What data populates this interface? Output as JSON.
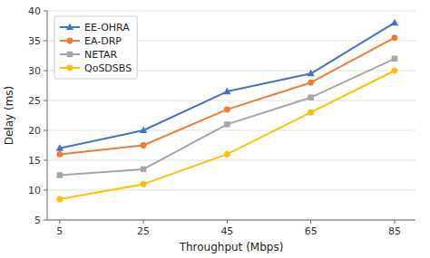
{
  "chart_data": {
    "type": "line",
    "xlabel": "Throughput (Mbps)",
    "ylabel": "Delay (ms)",
    "x": [
      5,
      25,
      45,
      65,
      85
    ],
    "series": [
      {
        "name": "EE-OHRA",
        "color": "#4472C4",
        "marker": "triangle",
        "values": [
          17.0,
          20.0,
          26.5,
          29.5,
          38.0
        ]
      },
      {
        "name": "EA-DRP",
        "color": "#ED7D31",
        "marker": "circle",
        "values": [
          16.0,
          17.5,
          23.5,
          28.0,
          35.5
        ]
      },
      {
        "name": "NETAR",
        "color": "#A5A5A5",
        "marker": "square",
        "values": [
          12.5,
          13.5,
          21.0,
          25.5,
          32.0
        ]
      },
      {
        "name": "QoSDSBS",
        "color": "#FFC000",
        "marker": "circle",
        "values": [
          8.5,
          11.0,
          16.0,
          23.0,
          30.0
        ]
      }
    ],
    "xlim": [
      2,
      90
    ],
    "xticks": [
      5,
      25,
      45,
      65,
      85
    ],
    "ylim": [
      5,
      40
    ],
    "yticks": [
      5,
      10,
      15,
      20,
      25,
      30,
      35,
      40
    ],
    "grid": "y",
    "legend": "upper left"
  }
}
